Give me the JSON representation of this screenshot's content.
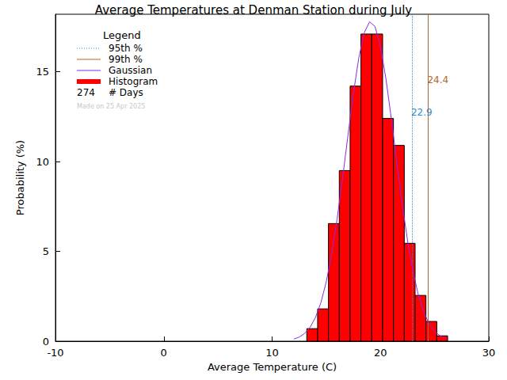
{
  "chart_data": {
    "type": "histogram",
    "title": "Average Temperatures at Denman Station during July",
    "x_label": "Average Temperature (C)",
    "y_label": "Probability (%)",
    "xlim": [
      -10,
      30
    ],
    "xticks": [
      -10,
      0,
      10,
      20,
      30
    ],
    "ylim": [
      0,
      18.2
    ],
    "yticks": [
      0,
      5,
      10,
      15
    ],
    "grid": false,
    "legend": "top-left",
    "legend_title": "Legend",
    "histogram": {
      "name": "Histogram",
      "color": "#ff0000",
      "bins": [
        13.2,
        14.2,
        15.2,
        16.2,
        17.2,
        18.2,
        19.2,
        20.2,
        21.2,
        22.2,
        23.2,
        24.2,
        25.2,
        26.2
      ],
      "values": [
        0.7,
        1.8,
        6.55,
        9.5,
        14.2,
        17.1,
        17.1,
        12.4,
        10.9,
        5.45,
        2.55,
        1.1,
        0.3
      ]
    },
    "gaussian": {
      "name": "Gaussian",
      "color": "#8a2be2",
      "line_style": "solid",
      "x": [
        12,
        12.5,
        13,
        13.5,
        14,
        14.5,
        15,
        15.5,
        16,
        16.5,
        17,
        17.5,
        18,
        18.5,
        19,
        19.5,
        20,
        20.5,
        21,
        21.5,
        22,
        22.5,
        23,
        23.5,
        24,
        24.5,
        25,
        25.5,
        26
      ],
      "values": [
        0.12,
        0.23,
        0.43,
        0.77,
        1.32,
        2.14,
        3.31,
        4.87,
        6.81,
        9.05,
        11.45,
        13.78,
        15.77,
        17.17,
        17.78,
        17.52,
        16.41,
        14.63,
        12.41,
        10.0,
        7.68,
        5.6,
        3.89,
        2.57,
        1.61,
        0.96,
        0.55,
        0.3,
        0.15
      ]
    },
    "percentiles": [
      {
        "name": "95th %",
        "value": 22.9,
        "color": "#2f8fc8",
        "line_style": "dotted"
      },
      {
        "name": "99th %",
        "value": 24.4,
        "color": "#b0682a",
        "line_style": "solid"
      }
    ],
    "days": {
      "value": 274,
      "label": "# Days"
    },
    "note": "Made on 25 Apr 2025"
  }
}
